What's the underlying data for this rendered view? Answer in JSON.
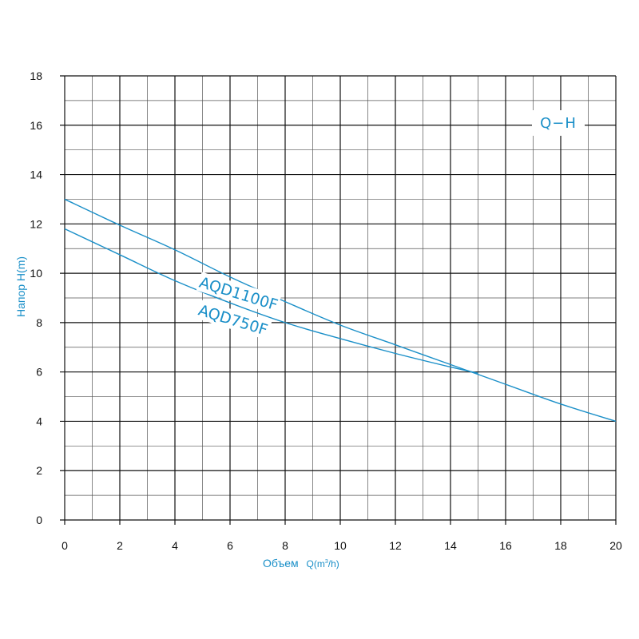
{
  "chart_data": {
    "type": "line",
    "title": "",
    "badge": "Q−H",
    "xlabel_main": "Объем",
    "xlabel_unit": "Q(m",
    "xlabel_sup": "3",
    "xlabel_tail": "/h)",
    "ylabel": "Напор H(m)",
    "xlim": [
      0,
      20
    ],
    "ylim": [
      0,
      18
    ],
    "x_ticks": [
      0,
      2,
      4,
      6,
      8,
      10,
      12,
      14,
      16,
      18,
      20
    ],
    "y_ticks": [
      0,
      2,
      4,
      6,
      8,
      10,
      12,
      14,
      16,
      18
    ],
    "grid": true,
    "series": [
      {
        "name": "AQD1100F",
        "color": "#1a8fc8",
        "x": [
          0,
          2,
          4,
          6,
          8,
          10,
          12,
          14,
          16,
          18,
          20
        ],
        "y": [
          13.0,
          11.95,
          10.95,
          9.85,
          8.85,
          7.9,
          7.1,
          6.3,
          5.5,
          4.7,
          4.0
        ]
      },
      {
        "name": "AQD750F",
        "color": "#1a8fc8",
        "x": [
          0,
          2,
          4,
          6,
          8,
          10,
          12,
          14,
          15
        ],
        "y": [
          11.8,
          10.75,
          9.7,
          8.8,
          8.0,
          7.35,
          6.75,
          6.2,
          5.95
        ]
      }
    ]
  }
}
